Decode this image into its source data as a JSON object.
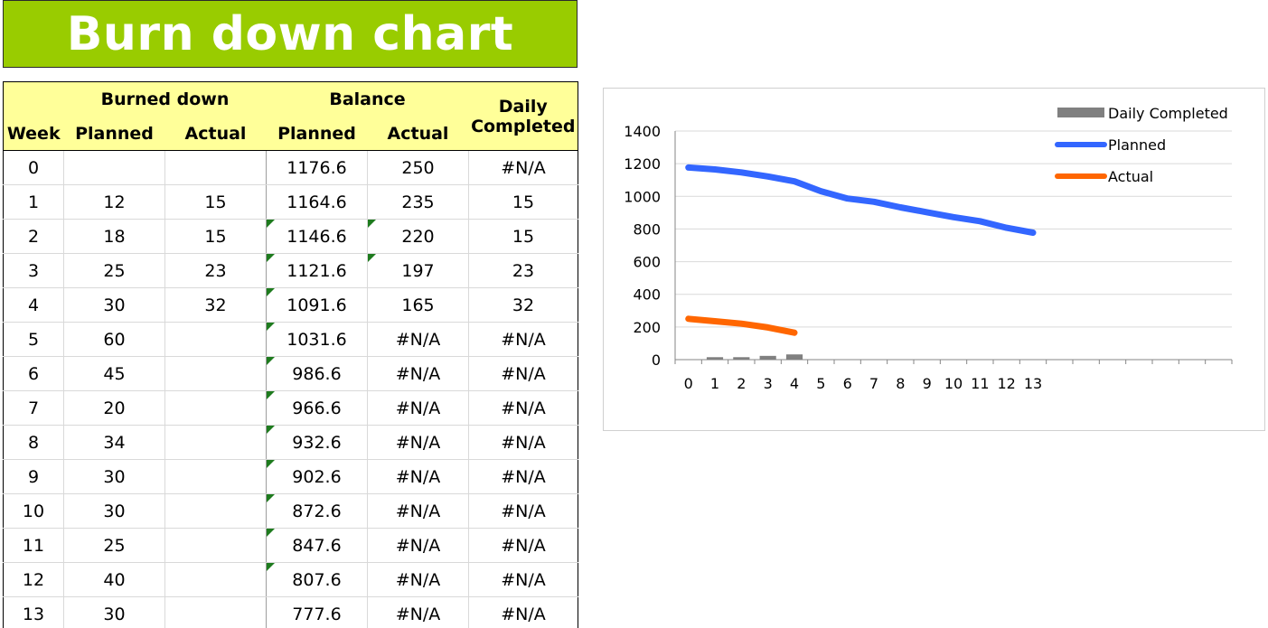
{
  "title": "Burn down chart",
  "table": {
    "header_groups": {
      "burned_down": "Burned down",
      "balance": "Balance",
      "daily": "Daily"
    },
    "columns": [
      "Week",
      "Planned",
      "Actual",
      "Planned",
      "Actual",
      "Completed"
    ],
    "rows": [
      {
        "week": "0",
        "bd_planned": "",
        "bd_actual": "",
        "bal_planned": "1176.6",
        "bal_actual": "250",
        "daily": "#N/A",
        "tri_planned": false,
        "tri_actual": false
      },
      {
        "week": "1",
        "bd_planned": "12",
        "bd_actual": "15",
        "bal_planned": "1164.6",
        "bal_actual": "235",
        "daily": "15",
        "tri_planned": false,
        "tri_actual": false
      },
      {
        "week": "2",
        "bd_planned": "18",
        "bd_actual": "15",
        "bal_planned": "1146.6",
        "bal_actual": "220",
        "daily": "15",
        "tri_planned": true,
        "tri_actual": true
      },
      {
        "week": "3",
        "bd_planned": "25",
        "bd_actual": "23",
        "bal_planned": "1121.6",
        "bal_actual": "197",
        "daily": "23",
        "tri_planned": true,
        "tri_actual": true
      },
      {
        "week": "4",
        "bd_planned": "30",
        "bd_actual": "32",
        "bal_planned": "1091.6",
        "bal_actual": "165",
        "daily": "32",
        "tri_planned": true,
        "tri_actual": false
      },
      {
        "week": "5",
        "bd_planned": "60",
        "bd_actual": "",
        "bal_planned": "1031.6",
        "bal_actual": "#N/A",
        "daily": "#N/A",
        "tri_planned": true,
        "tri_actual": false
      },
      {
        "week": "6",
        "bd_planned": "45",
        "bd_actual": "",
        "bal_planned": "986.6",
        "bal_actual": "#N/A",
        "daily": "#N/A",
        "tri_planned": true,
        "tri_actual": false
      },
      {
        "week": "7",
        "bd_planned": "20",
        "bd_actual": "",
        "bal_planned": "966.6",
        "bal_actual": "#N/A",
        "daily": "#N/A",
        "tri_planned": true,
        "tri_actual": false
      },
      {
        "week": "8",
        "bd_planned": "34",
        "bd_actual": "",
        "bal_planned": "932.6",
        "bal_actual": "#N/A",
        "daily": "#N/A",
        "tri_planned": true,
        "tri_actual": false
      },
      {
        "week": "9",
        "bd_planned": "30",
        "bd_actual": "",
        "bal_planned": "902.6",
        "bal_actual": "#N/A",
        "daily": "#N/A",
        "tri_planned": true,
        "tri_actual": false
      },
      {
        "week": "10",
        "bd_planned": "30",
        "bd_actual": "",
        "bal_planned": "872.6",
        "bal_actual": "#N/A",
        "daily": "#N/A",
        "tri_planned": true,
        "tri_actual": false
      },
      {
        "week": "11",
        "bd_planned": "25",
        "bd_actual": "",
        "bal_planned": "847.6",
        "bal_actual": "#N/A",
        "daily": "#N/A",
        "tri_planned": true,
        "tri_actual": false
      },
      {
        "week": "12",
        "bd_planned": "40",
        "bd_actual": "",
        "bal_planned": "807.6",
        "bal_actual": "#N/A",
        "daily": "#N/A",
        "tri_planned": true,
        "tri_actual": false
      },
      {
        "week": "13",
        "bd_planned": "30",
        "bd_actual": "",
        "bal_planned": "777.6",
        "bal_actual": "#N/A",
        "daily": "#N/A",
        "tri_planned": false,
        "tri_actual": false
      }
    ],
    "colors": {
      "title_bg": "#99cc00",
      "header_bg": "#ffff99",
      "error_indicator": "#1e7b1e"
    }
  },
  "chart_data": {
    "type": "line",
    "title": "",
    "xlabel": "",
    "ylabel": "",
    "x": [
      0,
      1,
      2,
      3,
      4,
      5,
      6,
      7,
      8,
      9,
      10,
      11,
      12,
      13
    ],
    "x_tick_labels": [
      "0",
      "1",
      "2",
      "3",
      "4",
      "5",
      "6",
      "7",
      "8",
      "9",
      "10",
      "11",
      "12",
      "13"
    ],
    "x_slots": 21,
    "y_ticks": [
      0,
      200,
      400,
      600,
      800,
      1000,
      1200,
      1400
    ],
    "ylim": [
      0,
      1400
    ],
    "grid": true,
    "legend_position": "top-right",
    "series": [
      {
        "name": "Daily Completed",
        "type": "bar",
        "color": "#808080",
        "values": [
          null,
          15,
          15,
          23,
          32,
          null,
          null,
          null,
          null,
          null,
          null,
          null,
          null,
          null
        ]
      },
      {
        "name": "Planned",
        "type": "line",
        "color": "#3366ff",
        "values": [
          1176.6,
          1164.6,
          1146.6,
          1121.6,
          1091.6,
          1031.6,
          986.6,
          966.6,
          932.6,
          902.6,
          872.6,
          847.6,
          807.6,
          777.6
        ]
      },
      {
        "name": "Actual",
        "type": "line",
        "color": "#ff6600",
        "values": [
          250,
          235,
          220,
          197,
          165,
          null,
          null,
          null,
          null,
          null,
          null,
          null,
          null,
          null
        ]
      }
    ]
  }
}
